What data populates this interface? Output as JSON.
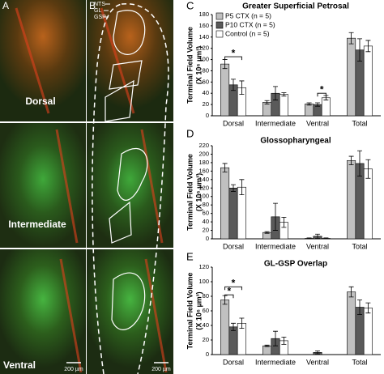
{
  "image_panels": {
    "labels": [
      "A",
      "B"
    ],
    "rows": [
      "Dorsal",
      "Intermediate",
      "Ventral"
    ],
    "scale_bar": "200 µm",
    "layers": [
      "NTS",
      "GL",
      "GSP"
    ]
  },
  "chart_data": [
    {
      "type": "bar",
      "panel_label": "C",
      "title": "Greater Superficial Petrosal",
      "y_label": [
        "Terminal Field Volume",
        "(X 10⁶ µm³)"
      ],
      "categories": [
        "Dorsal",
        "Intermediate",
        "Ventral",
        "Total"
      ],
      "series": [
        {
          "name": "P5 CTX (n = 5)",
          "color": "#c0c0c0",
          "values": [
            92,
            24,
            21,
            138
          ],
          "errors": [
            8,
            3,
            2,
            10
          ]
        },
        {
          "name": "P10 CTX (n = 5)",
          "color": "#5a5a5a",
          "values": [
            55,
            40,
            20,
            117
          ],
          "errors": [
            10,
            12,
            3,
            20
          ]
        },
        {
          "name": "Control (n = 5)",
          "color": "#ffffff",
          "values": [
            50,
            38,
            32,
            124
          ],
          "errors": [
            12,
            3,
            4,
            10
          ]
        }
      ],
      "ylim": [
        0,
        180
      ],
      "yticks": [
        0,
        20,
        40,
        60,
        80,
        100,
        120,
        140,
        160,
        180
      ],
      "annotations": [
        {
          "text": "*",
          "category": 0,
          "from": 0,
          "to": 2,
          "y": 105
        },
        {
          "text": "*",
          "category": 2,
          "from": 1,
          "to": 2,
          "y": 40
        }
      ]
    },
    {
      "type": "bar",
      "panel_label": "D",
      "title": "Glossopharyngeal",
      "y_label": [
        "Terminal Field Volume",
        "(X 10⁶ µm³)"
      ],
      "categories": [
        "Dorsal",
        "Intermediate",
        "Ventral",
        "Total"
      ],
      "series": [
        {
          "color": "#c0c0c0",
          "values": [
            168,
            15,
            1,
            185
          ],
          "errors": [
            10,
            2,
            1,
            10
          ]
        },
        {
          "color": "#5a5a5a",
          "values": [
            120,
            52,
            6,
            178
          ],
          "errors": [
            8,
            32,
            5,
            30
          ]
        },
        {
          "color": "#ffffff",
          "values": [
            122,
            39,
            1,
            165
          ],
          "errors": [
            18,
            12,
            1,
            22
          ]
        }
      ],
      "ylim": [
        0,
        220
      ],
      "yticks": [
        0,
        20,
        40,
        60,
        80,
        100,
        120,
        140,
        160,
        180,
        200,
        220
      ],
      "annotations": []
    },
    {
      "type": "bar",
      "panel_label": "E",
      "title": "GL-GSP Overlap",
      "y_label": [
        "Terminal Field Volume",
        "(X 10⁶ µm³)"
      ],
      "categories": [
        "Dorsal",
        "Intermediate",
        "Ventral",
        "Total"
      ],
      "series": [
        {
          "color": "#c0c0c0",
          "values": [
            75,
            12,
            0,
            86
          ],
          "errors": [
            6,
            1,
            0,
            7
          ]
        },
        {
          "color": "#5a5a5a",
          "values": [
            38,
            22,
            3,
            65
          ],
          "errors": [
            5,
            10,
            2,
            10
          ]
        },
        {
          "color": "#ffffff",
          "values": [
            43,
            19,
            0,
            64
          ],
          "errors": [
            7,
            5,
            0,
            7
          ]
        }
      ],
      "ylim": [
        0,
        120
      ],
      "yticks": [
        0,
        20,
        40,
        60,
        80,
        100,
        120
      ],
      "annotations": [
        {
          "text": "*",
          "category": 0,
          "from": 0,
          "to": 2,
          "y": 93
        },
        {
          "text": "*",
          "category": 0,
          "from": 0,
          "to": 1,
          "y": 82
        }
      ]
    }
  ]
}
